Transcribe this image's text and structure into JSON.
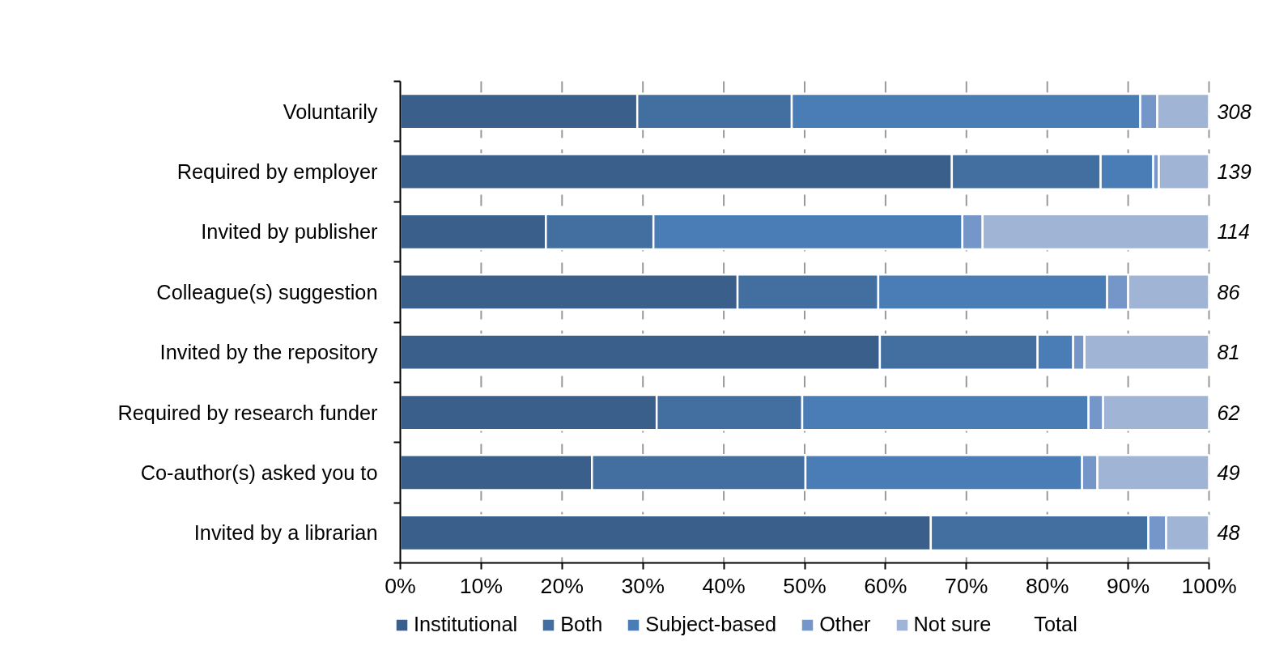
{
  "chart_data": {
    "type": "bar",
    "orientation": "horizontal",
    "stacked": true,
    "categories": [
      "Voluntarily",
      "Required by employer",
      "Invited by publisher",
      "Colleague(s) suggestion",
      "Invited by the repository",
      "Required by research funder",
      "Co-author(s) asked you to",
      "Invited by a librarian"
    ],
    "series": [
      {
        "name": "Institutional",
        "color": "#3a5f8b",
        "values": [
          29.3,
          68.2,
          18.0,
          41.7,
          59.3,
          31.7,
          23.7,
          65.6
        ]
      },
      {
        "name": "Both",
        "color": "#426ea0",
        "values": [
          19.1,
          18.4,
          13.3,
          17.4,
          19.5,
          18.0,
          26.4,
          26.9
        ]
      },
      {
        "name": "Subject-based",
        "color": "#4a7db5",
        "values": [
          43.1,
          6.5,
          38.2,
          28.3,
          4.4,
          35.4,
          34.2,
          null
        ]
      },
      {
        "name": "Other",
        "color": "#7596c8",
        "values": [
          2.1,
          0.7,
          2.5,
          2.6,
          1.4,
          1.8,
          1.9,
          2.2
        ]
      },
      {
        "name": "Not sure",
        "color": "#a0b4d6",
        "values": [
          6.4,
          6.2,
          28.0,
          10.0,
          15.4,
          13.1,
          13.8,
          5.3
        ]
      }
    ],
    "annotations": [
      "Total",
      "308",
      "139",
      "114",
      "86",
      "81",
      "62",
      "49",
      "48"
    ],
    "xlim": [
      0,
      100
    ],
    "xticks": [
      {
        "value": 0,
        "label": "0%"
      },
      {
        "value": 10,
        "label": "10%"
      },
      {
        "value": 20,
        "label": "20%"
      },
      {
        "value": 30,
        "label": "30%"
      },
      {
        "value": 40,
        "label": "40%"
      },
      {
        "value": 50,
        "label": "50%"
      },
      {
        "value": 60,
        "label": "60%"
      },
      {
        "value": 70,
        "label": "70%"
      },
      {
        "value": 80,
        "label": "80%"
      },
      {
        "value": 90,
        "label": "90%"
      },
      {
        "value": 100,
        "label": "100%"
      }
    ],
    "grid": "x",
    "legend": "bottom"
  }
}
